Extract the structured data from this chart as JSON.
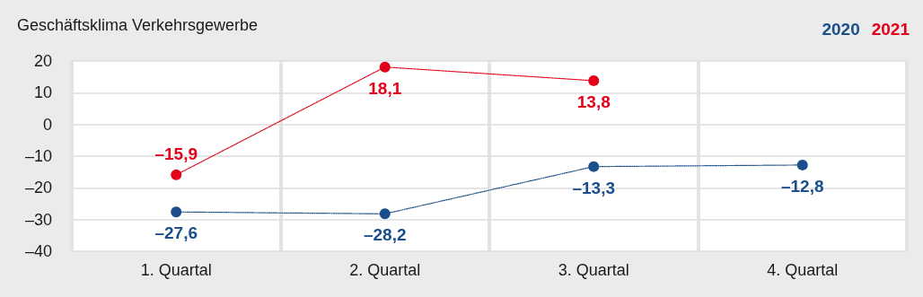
{
  "chart_data": {
    "type": "line",
    "title": "Geschäftsklima Verkehrsgewerbe",
    "categories": [
      "1. Quartal",
      "2. Quartal",
      "3. Quartal",
      "4. Quartal"
    ],
    "series": [
      {
        "name": "2020",
        "color": "#1a4f8b",
        "values": [
          -27.6,
          -28.2,
          -13.3,
          -12.8
        ],
        "value_labels": [
          "–27,6",
          "–28,2",
          "–13,3",
          "–12,8"
        ]
      },
      {
        "name": "2021",
        "color": "#e2001a",
        "values": [
          -15.9,
          18.1,
          13.8,
          null
        ],
        "value_labels": [
          "–15,9",
          "18,1",
          "13,8",
          null
        ]
      }
    ],
    "ylim": [
      -40,
      20
    ],
    "yticks": [
      {
        "value": -40,
        "label": "–40"
      },
      {
        "value": -30,
        "label": "–30"
      },
      {
        "value": -20,
        "label": "–20"
      },
      {
        "value": -10,
        "label": "–10"
      },
      0,
      10,
      20
    ],
    "grid": true,
    "legend": "top right",
    "marker": "circle",
    "line_style": "dotted"
  }
}
